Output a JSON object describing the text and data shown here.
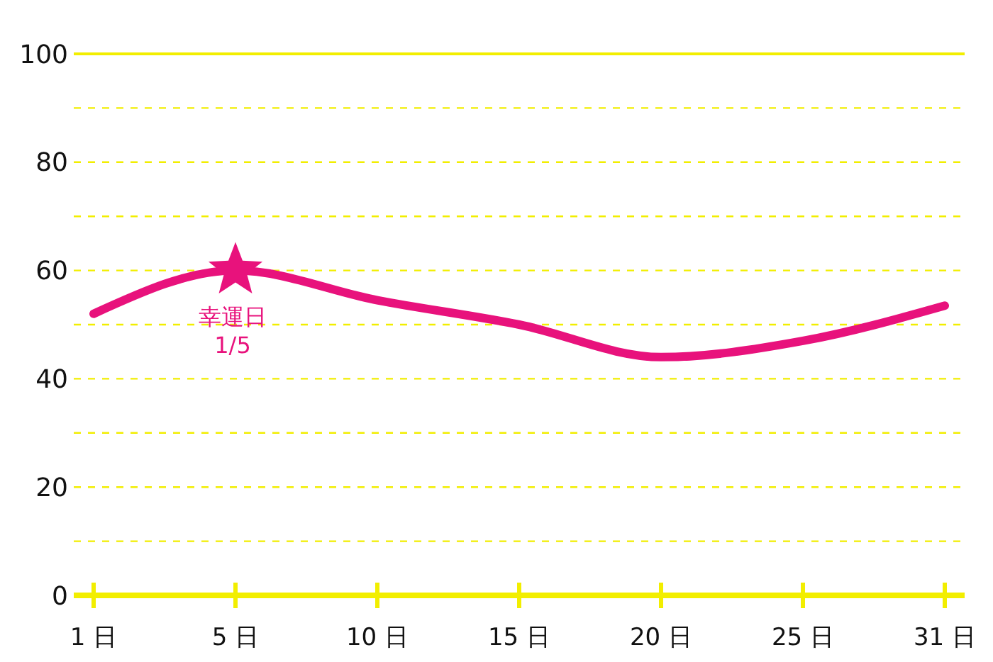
{
  "chart_data": {
    "type": "line",
    "categories": [
      "1 日",
      "5 日",
      "10 日",
      "15 日",
      "20 日",
      "25 日",
      "31 日"
    ],
    "series": [
      {
        "color": "#e8127c",
        "values": [
          52,
          60,
          54.5,
          50,
          44,
          47,
          53.5
        ]
      }
    ],
    "ylim": [
      0,
      100
    ],
    "yticks": [
      0,
      {
        "value": 10,
        "label": null
      },
      20,
      {
        "value": 30,
        "label": null
      },
      40,
      {
        "value": 50,
        "label": null
      },
      60,
      {
        "value": 70,
        "label": null
      },
      80,
      {
        "value": 90,
        "label": null
      },
      100
    ],
    "grid": "y",
    "marker": "none",
    "line_style": "solid",
    "annotations": [
      {
        "text": "幸運日\n1/5",
        "x": "5 日",
        "y": 60
      }
    ]
  }
}
